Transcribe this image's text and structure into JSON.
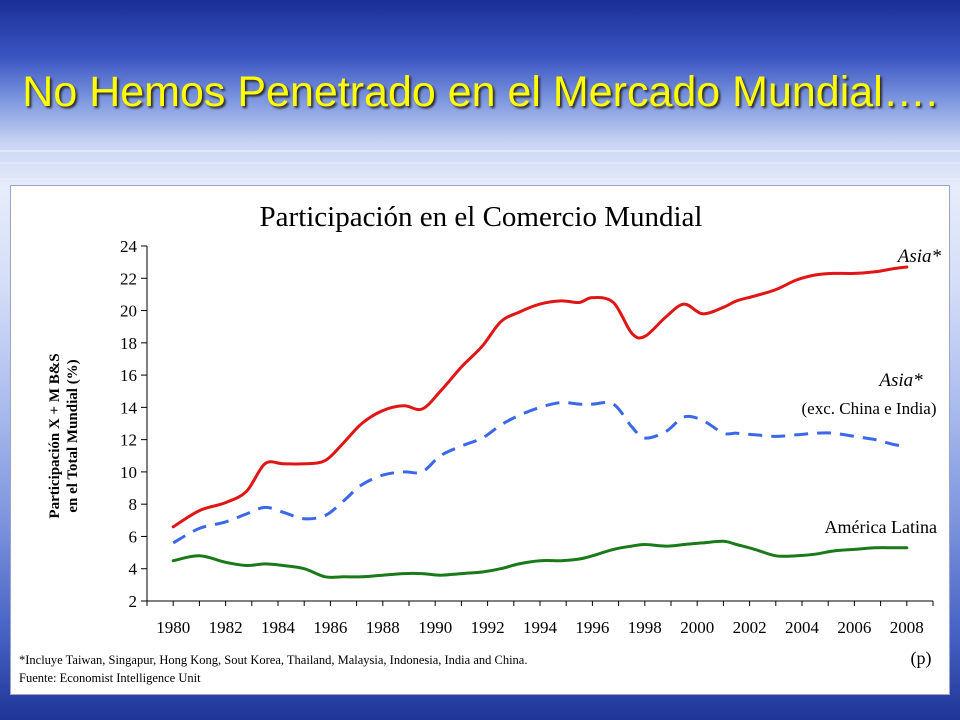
{
  "slide": {
    "title": "No Hemos Penetrado en el Mercado Mundial…."
  },
  "colors": {
    "title": "#ffff00",
    "asia": "#e01515",
    "asia_exc": "#3b68e8",
    "latam": "#1a7a1a"
  },
  "chart_data": {
    "type": "line",
    "title": "Participación en el Comercio Mundial",
    "ylabel_line1": "Participación X + M B&S",
    "ylabel_line2": "en el Total Mundial (%)",
    "ylim": [
      2,
      24
    ],
    "yticks": [
      2,
      4,
      6,
      8,
      10,
      12,
      14,
      16,
      18,
      20,
      22,
      24
    ],
    "xlim": [
      1979,
      2009
    ],
    "xticks": [
      "1980",
      "1982",
      "1984",
      "1986",
      "1988",
      "1990",
      "1992",
      "1994",
      "1996",
      "1998",
      "2000",
      "2002",
      "2004",
      "2006",
      "2008"
    ],
    "grid": false,
    "x_note": "(p)",
    "footnote": "*Incluye Taiwan, Singapur, Hong Kong, Sout Korea, Thailand, Malaysia, Indonesia, India and China.",
    "source": "Fuente: Economist Intelligence Unit",
    "series": [
      {
        "name": "Asia*",
        "style": "solid",
        "color": "#e01515",
        "x": [
          1980,
          1981,
          1982,
          1982.8,
          1983.5,
          1984.2,
          1985,
          1985.8,
          1986.5,
          1987.2,
          1988,
          1988.8,
          1989.5,
          1990.2,
          1991,
          1991.8,
          1992.5,
          1993.2,
          1994,
          1994.8,
          1995.5,
          1996,
          1996.8,
          1997.5,
          1998,
          1998.8,
          1999.5,
          2000.2,
          2001,
          2001.5,
          2002.2,
          2003,
          2003.8,
          2004.5,
          2005.2,
          2006,
          2006.8,
          2007.5,
          2008
        ],
        "y": [
          6.6,
          7.6,
          8.1,
          8.8,
          10.5,
          10.5,
          10.5,
          10.7,
          11.8,
          13.0,
          13.8,
          14.1,
          13.9,
          15.0,
          16.5,
          17.8,
          19.3,
          19.9,
          20.4,
          20.6,
          20.5,
          20.8,
          20.5,
          18.6,
          18.4,
          19.6,
          20.4,
          19.8,
          20.2,
          20.6,
          20.9,
          21.3,
          21.9,
          22.2,
          22.3,
          22.3,
          22.4,
          22.6,
          22.7
        ]
      },
      {
        "name": "Asia*",
        "subname": "(exc. China e India)",
        "style": "dashed",
        "color": "#3b68e8",
        "x": [
          1980,
          1981,
          1982,
          1982.8,
          1983.5,
          1984.2,
          1985,
          1985.8,
          1986.5,
          1987.2,
          1988,
          1988.8,
          1989.5,
          1990.2,
          1991,
          1991.8,
          1992.5,
          1993.2,
          1994,
          1994.8,
          1995.5,
          1996,
          1996.8,
          1997.5,
          1998,
          1998.8,
          1999.5,
          2000.2,
          2001,
          2001.5,
          2002.2,
          2003,
          2003.8,
          2004.5,
          2005.2,
          2006,
          2006.8,
          2007.5,
          2008
        ],
        "y": [
          5.6,
          6.5,
          6.9,
          7.4,
          7.8,
          7.5,
          7.1,
          7.3,
          8.2,
          9.2,
          9.8,
          10.0,
          10.0,
          11.0,
          11.6,
          12.1,
          12.9,
          13.5,
          14.0,
          14.3,
          14.2,
          14.2,
          14.2,
          12.8,
          12.1,
          12.5,
          13.4,
          13.2,
          12.4,
          12.4,
          12.3,
          12.2,
          12.3,
          12.4,
          12.4,
          12.2,
          12.0,
          11.7,
          11.6
        ]
      },
      {
        "name": "América Latina",
        "style": "solid",
        "color": "#1a7a1a",
        "x": [
          1980,
          1981,
          1982,
          1982.8,
          1983.5,
          1984.2,
          1985,
          1985.8,
          1986.5,
          1987.2,
          1988,
          1988.8,
          1989.5,
          1990.2,
          1991,
          1991.8,
          1992.5,
          1993.2,
          1994,
          1994.8,
          1995.5,
          1996,
          1996.8,
          1997.5,
          1998,
          1998.8,
          1999.5,
          2000.2,
          2001,
          2001.5,
          2002.2,
          2003,
          2003.8,
          2004.5,
          2005.2,
          2006,
          2006.8,
          2007.5,
          2008
        ],
        "y": [
          4.5,
          4.8,
          4.4,
          4.2,
          4.3,
          4.2,
          4.0,
          3.5,
          3.5,
          3.5,
          3.6,
          3.7,
          3.7,
          3.6,
          3.7,
          3.8,
          4.0,
          4.3,
          4.5,
          4.5,
          4.6,
          4.8,
          5.2,
          5.4,
          5.5,
          5.4,
          5.5,
          5.6,
          5.7,
          5.5,
          5.2,
          4.8,
          4.8,
          4.9,
          5.1,
          5.2,
          5.3,
          5.3,
          5.3
        ]
      }
    ]
  }
}
